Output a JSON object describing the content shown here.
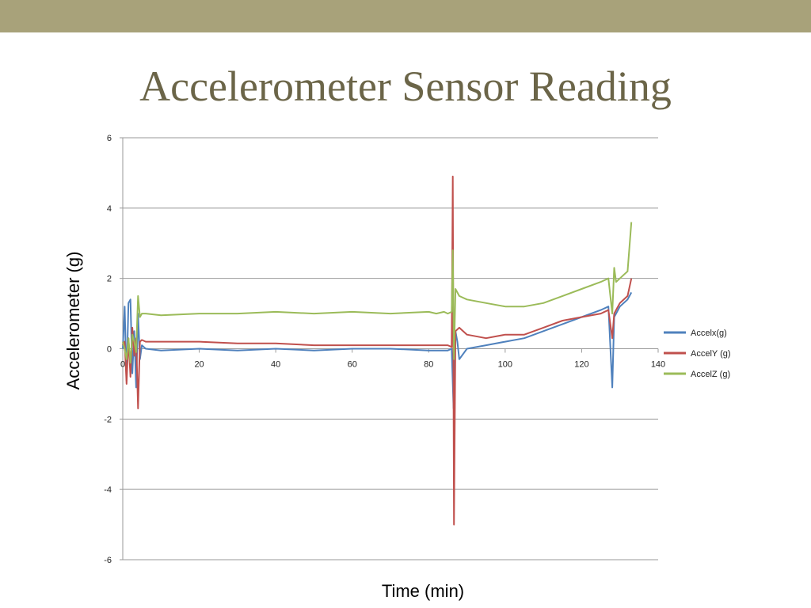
{
  "slide": {
    "title": "Accelerometer Sensor Reading"
  },
  "colors": {
    "top_bar": "#a8a27a",
    "title": "#6b6548",
    "grid": "#9a9a9a"
  },
  "chart_data": {
    "type": "line",
    "xlabel": "Time (min)",
    "ylabel": "Accelerometer (g)",
    "xlim": [
      0,
      140
    ],
    "ylim": [
      -6,
      6
    ],
    "x_ticks": [
      0,
      20,
      40,
      60,
      80,
      100,
      120,
      140
    ],
    "y_ticks": [
      6,
      4,
      2,
      0,
      -2,
      -4,
      -6
    ],
    "grid": "horizontal",
    "legend_position": "right",
    "series": [
      {
        "name": "Accelx(g)",
        "color": "#4f81bd",
        "x": [
          0,
          0.5,
          1,
          1.5,
          2,
          2.5,
          3,
          3.5,
          4,
          4.5,
          5,
          6,
          10,
          20,
          30,
          40,
          50,
          60,
          70,
          80,
          85,
          86,
          86.5,
          87,
          87.5,
          88,
          90,
          95,
          100,
          105,
          110,
          115,
          120,
          125,
          127,
          128,
          128.5,
          129,
          130,
          132,
          133
        ],
        "y": [
          0,
          1.2,
          -0.9,
          1.3,
          1.4,
          -0.7,
          0.5,
          -1.1,
          1.0,
          -0.3,
          0.1,
          0.0,
          -0.05,
          0.0,
          -0.05,
          0.0,
          -0.05,
          0.0,
          0.0,
          -0.05,
          -0.05,
          0.0,
          -1.7,
          0.5,
          0.2,
          -0.3,
          0.0,
          0.1,
          0.2,
          0.3,
          0.5,
          0.7,
          0.9,
          1.1,
          1.2,
          -1.1,
          0.9,
          1.0,
          1.2,
          1.4,
          1.6
        ]
      },
      {
        "name": "AccelY (g)",
        "color": "#c0504d",
        "x": [
          0,
          0.5,
          1,
          1.5,
          2,
          2.5,
          3,
          3.5,
          4,
          4.5,
          5,
          6,
          10,
          20,
          30,
          40,
          50,
          60,
          70,
          80,
          85,
          86,
          86.3,
          86.6,
          87,
          88,
          90,
          95,
          100,
          105,
          110,
          115,
          120,
          125,
          127,
          128,
          128.5,
          129,
          130,
          132,
          133
        ],
        "y": [
          0.1,
          0.2,
          -1.0,
          0.3,
          -0.8,
          0.6,
          -0.2,
          0.3,
          -1.7,
          0.2,
          0.25,
          0.2,
          0.2,
          0.2,
          0.15,
          0.15,
          0.1,
          0.1,
          0.1,
          0.1,
          0.1,
          0.05,
          4.9,
          -5.0,
          0.5,
          0.6,
          0.4,
          0.3,
          0.4,
          0.4,
          0.6,
          0.8,
          0.9,
          1.0,
          1.1,
          0.3,
          1.0,
          1.1,
          1.3,
          1.5,
          2.0
        ]
      },
      {
        "name": "AccelZ (g)",
        "color": "#9bbb59",
        "x": [
          0,
          0.5,
          1,
          1.5,
          2,
          2.5,
          3,
          3.5,
          4,
          4.5,
          5,
          6,
          10,
          20,
          30,
          40,
          50,
          60,
          70,
          80,
          82,
          84,
          85,
          86,
          86.3,
          86.6,
          87,
          88,
          90,
          95,
          100,
          105,
          110,
          115,
          120,
          125,
          127,
          128,
          128.5,
          129,
          130,
          131,
          132,
          133
        ],
        "y": [
          0.2,
          0.0,
          -0.3,
          0.3,
          -0.4,
          0.4,
          0.2,
          -0.1,
          1.5,
          0.9,
          1.0,
          1.0,
          0.95,
          1.0,
          1.0,
          1.05,
          1.0,
          1.05,
          1.0,
          1.05,
          1.0,
          1.05,
          1.0,
          1.05,
          2.8,
          -0.3,
          1.7,
          1.5,
          1.4,
          1.3,
          1.2,
          1.2,
          1.3,
          1.5,
          1.7,
          1.9,
          2.0,
          1.0,
          2.3,
          1.9,
          2.0,
          2.1,
          2.2,
          3.6
        ]
      }
    ]
  }
}
